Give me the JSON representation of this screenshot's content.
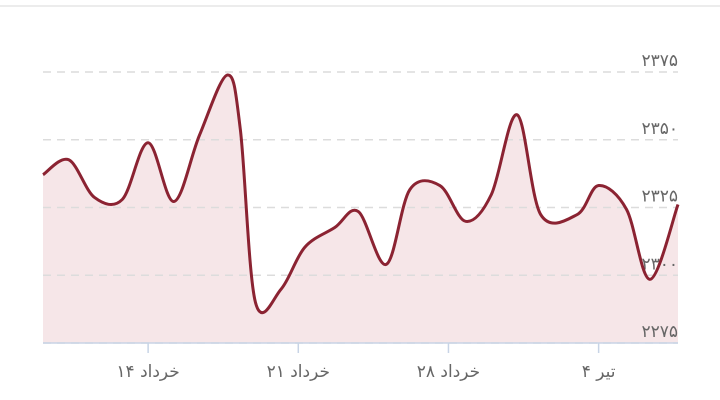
{
  "chart_data": {
    "type": "line",
    "x": [
      9.1,
      10.3,
      11.5,
      12.8,
      14,
      15.2,
      16.4,
      17.7,
      18.3,
      19.0,
      20.2,
      21.3,
      22.7,
      23.8,
      25.1,
      26.2,
      27.6,
      28.8,
      30.0,
      31.2,
      32.3,
      34.0,
      35.0,
      36.3,
      37.4,
      38.7
    ],
    "values": [
      2337.1,
      2342.6,
      2328.7,
      2328,
      2348.9,
      2327.2,
      2351.8,
      2373.9,
      2353.7,
      2290.1,
      2294.9,
      2310.3,
      2317.6,
      2323.5,
      2304,
      2331.6,
      2333.1,
      2319.9,
      2329.8,
      2359.2,
      2322.4,
      2322.4,
      2333.1,
      2324.3,
      2298.5,
      2326.1
    ],
    "color": "#8b2332",
    "fill": "#f6e6e8",
    "xlim": [
      9.1,
      38.7
    ],
    "xticks": [
      {
        "value": 14,
        "label": "۱۴ خرداد"
      },
      {
        "value": 21,
        "label": "۲۱ خرداد"
      },
      {
        "value": 28,
        "label": "۲۸ خرداد"
      },
      {
        "value": 35,
        "label": "۴ تیر"
      }
    ],
    "ylim": [
      2275,
      2375
    ],
    "yticks": [
      {
        "value": 2275,
        "label": "۲۲۷۵"
      },
      {
        "value": 2300,
        "label": "۲۳۰۰"
      },
      {
        "value": 2325,
        "label": "۲۳۲۵"
      },
      {
        "value": 2350,
        "label": "۲۳۵۰"
      },
      {
        "value": 2375,
        "label": "۲۳۷۵"
      }
    ],
    "grid": true
  }
}
